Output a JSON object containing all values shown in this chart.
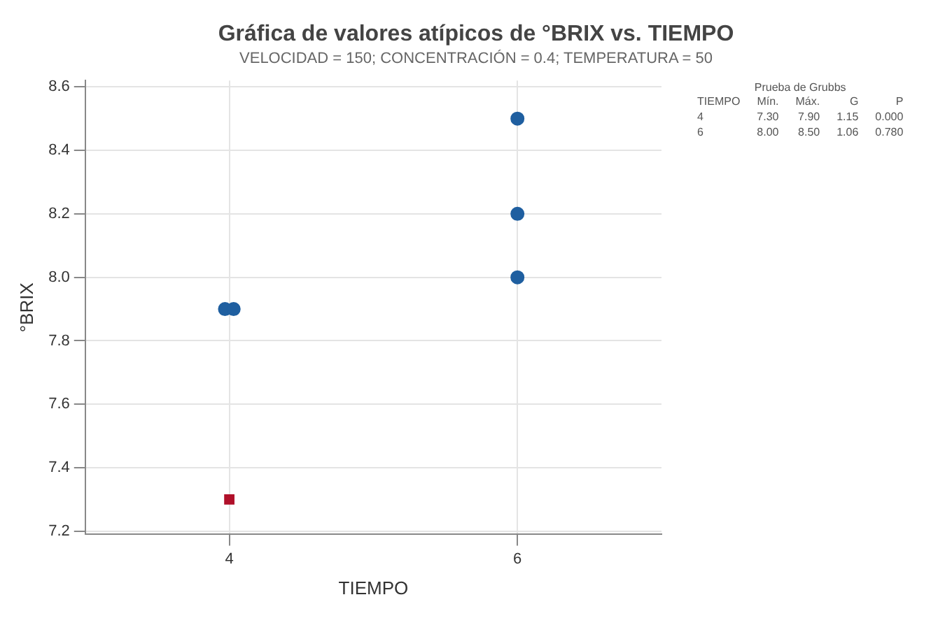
{
  "chart_data": {
    "type": "scatter",
    "title": "Gráfica de valores atípicos de °BRIX vs. TIEMPO",
    "subtitle": "VELOCIDAD = 150; CONCENTRACIÓN = 0.4; TEMPERATURA = 50",
    "xlabel": "TIEMPO",
    "ylabel": "°BRIX",
    "series": [
      {
        "color": "#1f5fa0",
        "marker": "circle",
        "x": [
          3.97,
          4.03,
          6,
          6,
          6
        ],
        "values": [
          7.9,
          7.9,
          8.0,
          8.2,
          8.5
        ]
      },
      {
        "color": "#b0102a",
        "marker": "square",
        "x": [
          4
        ],
        "values": [
          7.3
        ]
      }
    ],
    "xlim": [
      3,
      7
    ],
    "xticks": [
      4,
      6
    ],
    "ylim": [
      7.19,
      8.62
    ],
    "yticks": [
      7.2,
      7.4,
      7.6,
      7.8,
      {
        "value": 8,
        "label": "8.0"
      },
      8.2,
      8.4,
      8.6
    ],
    "grid": true,
    "legend": false,
    "annotations": [
      "Prueba de Grubbs",
      "TIEMPO",
      "Mín.",
      "Máx.",
      "G",
      "P",
      "4",
      "7.30",
      "7.90",
      "1.15",
      "0.000",
      "6",
      "8.00",
      "8.50",
      "1.06",
      "0.780"
    ]
  }
}
